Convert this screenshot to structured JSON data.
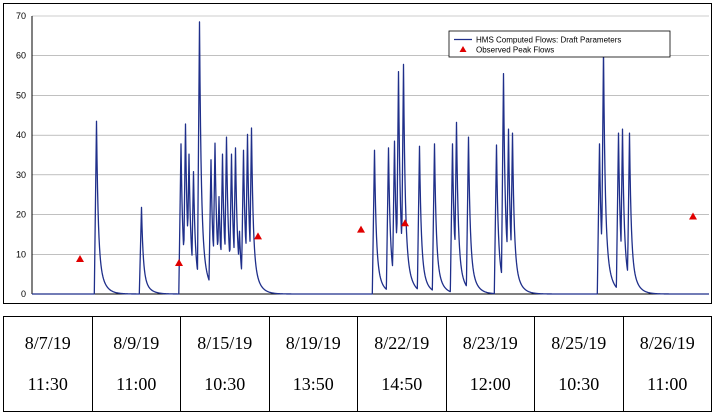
{
  "chart_data": {
    "type": "line",
    "ylim": [
      0,
      70
    ],
    "yticks": [
      0,
      10,
      20,
      30,
      40,
      50,
      60,
      70
    ],
    "grid": "horizontal",
    "legend_placement": "top-right",
    "legend": [
      {
        "label": "HMS Computed Flows: Draft Parameters",
        "marker": "line",
        "color": "#1f2f8a"
      },
      {
        "label": "Observed Peak Flows",
        "marker": "triangle",
        "color": "#e00000"
      }
    ],
    "series": [
      {
        "name": "HMS Computed Flows: Draft Parameters",
        "color": "#1f2f8a",
        "peaks": [
          {
            "x": 64.5,
            "y": 43.5
          },
          {
            "x": 109.5,
            "y": 21.8
          },
          {
            "x": 149,
            "y": 37.8
          },
          {
            "x": 153.5,
            "y": 42.8
          },
          {
            "x": 157,
            "y": 35.2
          },
          {
            "x": 161.5,
            "y": 30.8
          },
          {
            "x": 167.5,
            "y": 68.5
          },
          {
            "x": 179,
            "y": 33.8
          },
          {
            "x": 183,
            "y": 38
          },
          {
            "x": 187,
            "y": 24.5
          },
          {
            "x": 190.5,
            "y": 35.2
          },
          {
            "x": 194.5,
            "y": 39.5
          },
          {
            "x": 199.5,
            "y": 35.2
          },
          {
            "x": 203.5,
            "y": 36.8
          },
          {
            "x": 207.5,
            "y": 15.8
          },
          {
            "x": 211.5,
            "y": 36.2
          },
          {
            "x": 215.5,
            "y": 40.2
          },
          {
            "x": 219.5,
            "y": 41.8
          },
          {
            "x": 342.5,
            "y": 36.2
          },
          {
            "x": 356.5,
            "y": 36.8
          },
          {
            "x": 362.5,
            "y": 38.5
          },
          {
            "x": 366.5,
            "y": 56
          },
          {
            "x": 371.5,
            "y": 57.8
          },
          {
            "x": 387.5,
            "y": 37.2
          },
          {
            "x": 402.5,
            "y": 37.8
          },
          {
            "x": 420.5,
            "y": 37.8
          },
          {
            "x": 424.5,
            "y": 43.2
          },
          {
            "x": 436.5,
            "y": 39.5
          },
          {
            "x": 464.5,
            "y": 37.5
          },
          {
            "x": 471.5,
            "y": 55.5
          },
          {
            "x": 476.5,
            "y": 41.5
          },
          {
            "x": 480.5,
            "y": 40.5
          },
          {
            "x": 567.5,
            "y": 37.8
          },
          {
            "x": 571.5,
            "y": 61.5
          },
          {
            "x": 586.5,
            "y": 40.5
          },
          {
            "x": 590.5,
            "y": 41.5
          },
          {
            "x": 597.5,
            "y": 40.5
          }
        ]
      },
      {
        "name": "Observed Peak Flows",
        "color": "#e00000",
        "points": [
          {
            "x": 48,
            "y": 8.8
          },
          {
            "x": 147,
            "y": 7.8
          },
          {
            "x": 226,
            "y": 14.5
          },
          {
            "x": 329,
            "y": 16.2
          },
          {
            "x": 373,
            "y": 17.8
          },
          {
            "x": 661,
            "y": 19.5
          }
        ]
      }
    ]
  },
  "table": {
    "columns": [
      {
        "date": "8/7/19",
        "time": "11:30"
      },
      {
        "date": "8/9/19",
        "time": "11:00"
      },
      {
        "date": "8/15/19",
        "time": "10:30"
      },
      {
        "date": "8/19/19",
        "time": "13:50"
      },
      {
        "date": "8/22/19",
        "time": "14:50"
      },
      {
        "date": "8/23/19",
        "time": "12:00"
      },
      {
        "date": "8/25/19",
        "time": "10:30"
      },
      {
        "date": "8/26/19",
        "time": "11:00"
      }
    ]
  }
}
